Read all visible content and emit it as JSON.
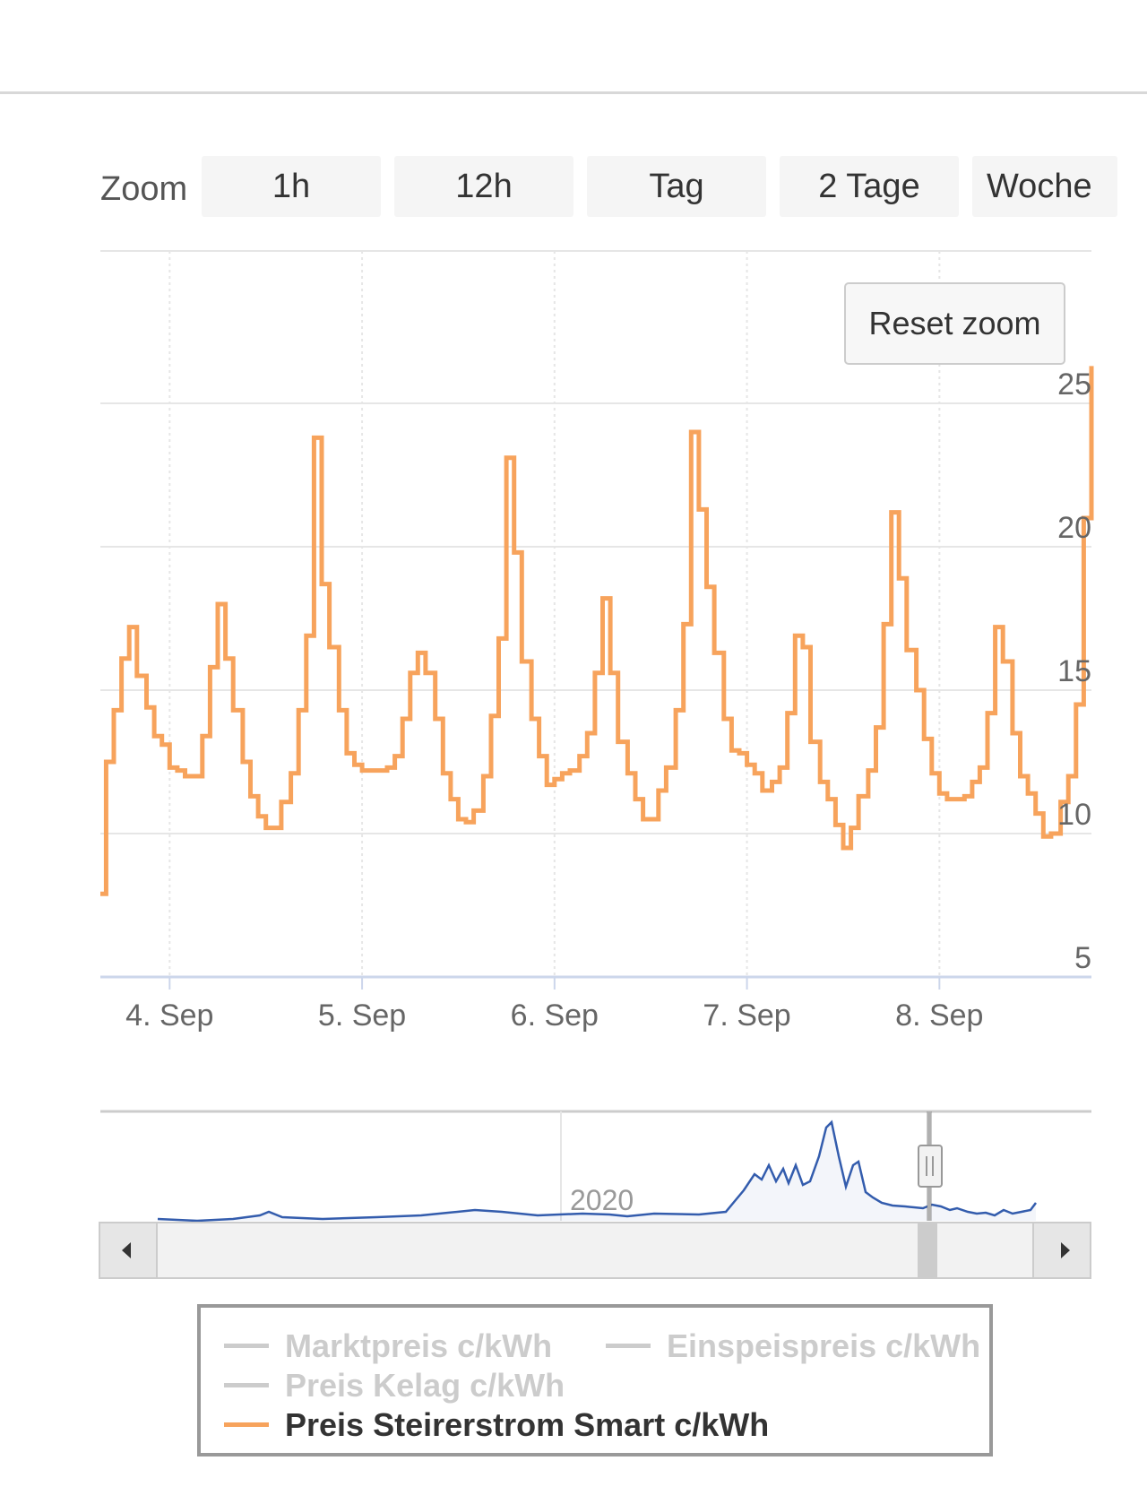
{
  "zoom": {
    "label": "Zoom",
    "buttons": [
      "1h",
      "12h",
      "Tag",
      "2 Tage",
      "Woche"
    ]
  },
  "reset_zoom_label": "Reset zoom",
  "colors": {
    "series": "#f7a35c",
    "navigator_line": "#335cad",
    "grid": "#e6e6e6",
    "axis_line": "#ccd6eb",
    "inactive_legend": "#cccccc"
  },
  "chart_data": {
    "type": "line",
    "step": true,
    "y_ticks": [
      5,
      10,
      15,
      20,
      25
    ],
    "ylim": [
      5,
      28
    ],
    "x_ticks": [
      "4. Sep",
      "5. Sep",
      "6. Sep",
      "7. Sep",
      "8. Sep"
    ],
    "xlim": [
      3.64,
      8.79
    ],
    "grid": true,
    "legend_position": "bottom",
    "series": [
      {
        "name": "Preis Steirerstrom Smart c/kWh",
        "x": [
          3.64,
          3.67,
          3.71,
          3.75,
          3.79,
          3.83,
          3.88,
          3.92,
          3.96,
          4.0,
          4.04,
          4.08,
          4.13,
          4.17,
          4.21,
          4.25,
          4.29,
          4.33,
          4.38,
          4.42,
          4.46,
          4.5,
          4.54,
          4.58,
          4.63,
          4.67,
          4.71,
          4.75,
          4.79,
          4.83,
          4.88,
          4.92,
          4.96,
          5.0,
          5.04,
          5.08,
          5.13,
          5.17,
          5.21,
          5.25,
          5.29,
          5.33,
          5.38,
          5.42,
          5.46,
          5.5,
          5.54,
          5.58,
          5.63,
          5.67,
          5.71,
          5.75,
          5.79,
          5.83,
          5.88,
          5.92,
          5.96,
          6.0,
          6.04,
          6.08,
          6.13,
          6.17,
          6.21,
          6.25,
          6.29,
          6.33,
          6.38,
          6.42,
          6.46,
          6.5,
          6.54,
          6.58,
          6.63,
          6.67,
          6.71,
          6.75,
          6.79,
          6.83,
          6.88,
          6.92,
          6.96,
          7.0,
          7.04,
          7.08,
          7.13,
          7.17,
          7.21,
          7.25,
          7.29,
          7.33,
          7.38,
          7.42,
          7.46,
          7.5,
          7.54,
          7.58,
          7.63,
          7.67,
          7.71,
          7.75,
          7.79,
          7.83,
          7.88,
          7.92,
          7.96,
          8.0,
          8.04,
          8.08,
          8.13,
          8.17,
          8.21,
          8.25,
          8.29,
          8.33,
          8.38,
          8.42,
          8.46,
          8.5,
          8.54,
          8.58,
          8.63,
          8.67,
          8.71,
          8.75,
          8.79
        ],
        "values": [
          7.9,
          12.5,
          14.3,
          16.1,
          17.2,
          15.5,
          14.4,
          13.4,
          13.1,
          12.3,
          12.2,
          12.0,
          12.0,
          13.4,
          15.8,
          18.0,
          16.1,
          14.3,
          12.5,
          11.3,
          10.6,
          10.2,
          10.2,
          11.1,
          12.1,
          14.3,
          16.9,
          23.8,
          18.7,
          16.5,
          14.3,
          12.8,
          12.4,
          12.2,
          12.2,
          12.2,
          12.3,
          12.7,
          14.0,
          15.6,
          16.3,
          15.6,
          14.0,
          12.1,
          11.2,
          10.5,
          10.4,
          10.8,
          12.0,
          14.1,
          16.8,
          23.1,
          19.8,
          16.0,
          14.0,
          12.7,
          11.7,
          11.9,
          12.1,
          12.2,
          12.7,
          13.5,
          15.6,
          18.2,
          15.6,
          13.2,
          12.1,
          11.2,
          10.5,
          10.5,
          11.5,
          12.3,
          14.3,
          17.3,
          24.0,
          21.3,
          18.6,
          16.3,
          14.0,
          12.9,
          12.8,
          12.4,
          12.1,
          11.5,
          11.8,
          12.3,
          14.2,
          16.9,
          16.5,
          13.2,
          11.8,
          11.2,
          10.3,
          9.5,
          10.2,
          11.3,
          12.2,
          13.7,
          17.3,
          21.2,
          18.9,
          16.4,
          15.0,
          13.3,
          12.1,
          11.4,
          11.2,
          11.2,
          11.3,
          11.8,
          12.3,
          14.2,
          17.2,
          16.0,
          13.5,
          12.0,
          11.4,
          10.7,
          9.9,
          10.0,
          11.1,
          12.0,
          14.5,
          21.0,
          26.3
        ]
      }
    ],
    "navigator": {
      "x_label": "2020",
      "series": "Marktpreis c/kWh"
    }
  },
  "legend": [
    {
      "label": "Marktpreis c/kWh",
      "active": false
    },
    {
      "label": "Einspeispreis c/kWh",
      "active": false
    },
    {
      "label": "Preis Kelag c/kWh",
      "active": false
    },
    {
      "label": "Preis Steirerstrom Smart c/kWh",
      "active": true
    }
  ]
}
